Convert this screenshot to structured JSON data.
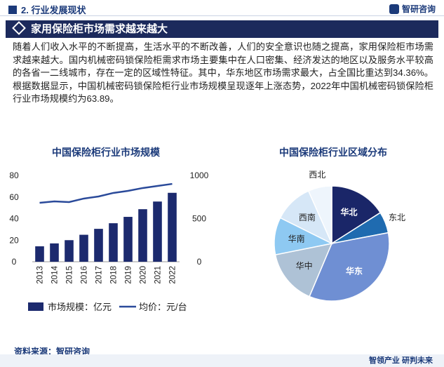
{
  "header": {
    "section": "2. 行业发展现状",
    "brand": "智研咨询"
  },
  "banner": "家用保险柜市场需求越来越大",
  "paragraph": "随着人们收入水平的不断提高，生活水平的不断改善，人们的安全意识也随之提高，家用保险柜市场需求越来越大。国内机械密码锁保险柜需求市场主要集中在人口密集、经济发达的地区以及服务水平较高的各省一二线城市，存在一定的区域性特征。其中，华东地区市场需求最大，占全国比重达到34.36%。根据数据显示，中国机械密码锁保险柜行业市场规模呈现逐年上涨态势，2022年中国机械密码锁保险柜行业市场规模约为63.89。",
  "source": "资料来源：智研咨询",
  "footer": "智领产业 研判未来",
  "chart_data": [
    {
      "type": "bar",
      "title": "中国保险柜行业市场规模",
      "categories": [
        "2013",
        "2014",
        "2015",
        "2016",
        "2017",
        "2018",
        "2019",
        "2020",
        "2021",
        "2022"
      ],
      "series": [
        {
          "name": "市场规模：亿元",
          "type": "bar",
          "color": "#1c2a6e",
          "values": [
            14.3,
            17,
            20,
            25,
            30.5,
            35.7,
            41.6,
            48.7,
            55.8,
            63.89
          ]
        },
        {
          "name": "均价：元/台",
          "type": "line",
          "axis": "y2",
          "color": "#2a4a9a",
          "values": [
            683,
            699,
            691,
            732,
            756,
            797,
            821,
            854,
            878,
            902
          ]
        }
      ],
      "ylim": [
        0,
        80
      ],
      "yticks": [
        0,
        20,
        40,
        60,
        80
      ],
      "y2lim": [
        0,
        1000
      ],
      "y2ticks": [
        0,
        500,
        1000
      ],
      "grid": false
    },
    {
      "type": "pie",
      "title": "中国保险柜行业区域分布",
      "categories": [
        "华北",
        "东北",
        "华东",
        "华中",
        "华南",
        "西南",
        "西北"
      ],
      "values": [
        16,
        6,
        34.36,
        15.5,
        10.5,
        11,
        6.64
      ],
      "colors": [
        "#1a2668",
        "#1f6bb0",
        "#6f8fd3",
        "#aec2d6",
        "#8ec9f2",
        "#d6e7f7",
        "#eef5fc"
      ]
    }
  ]
}
